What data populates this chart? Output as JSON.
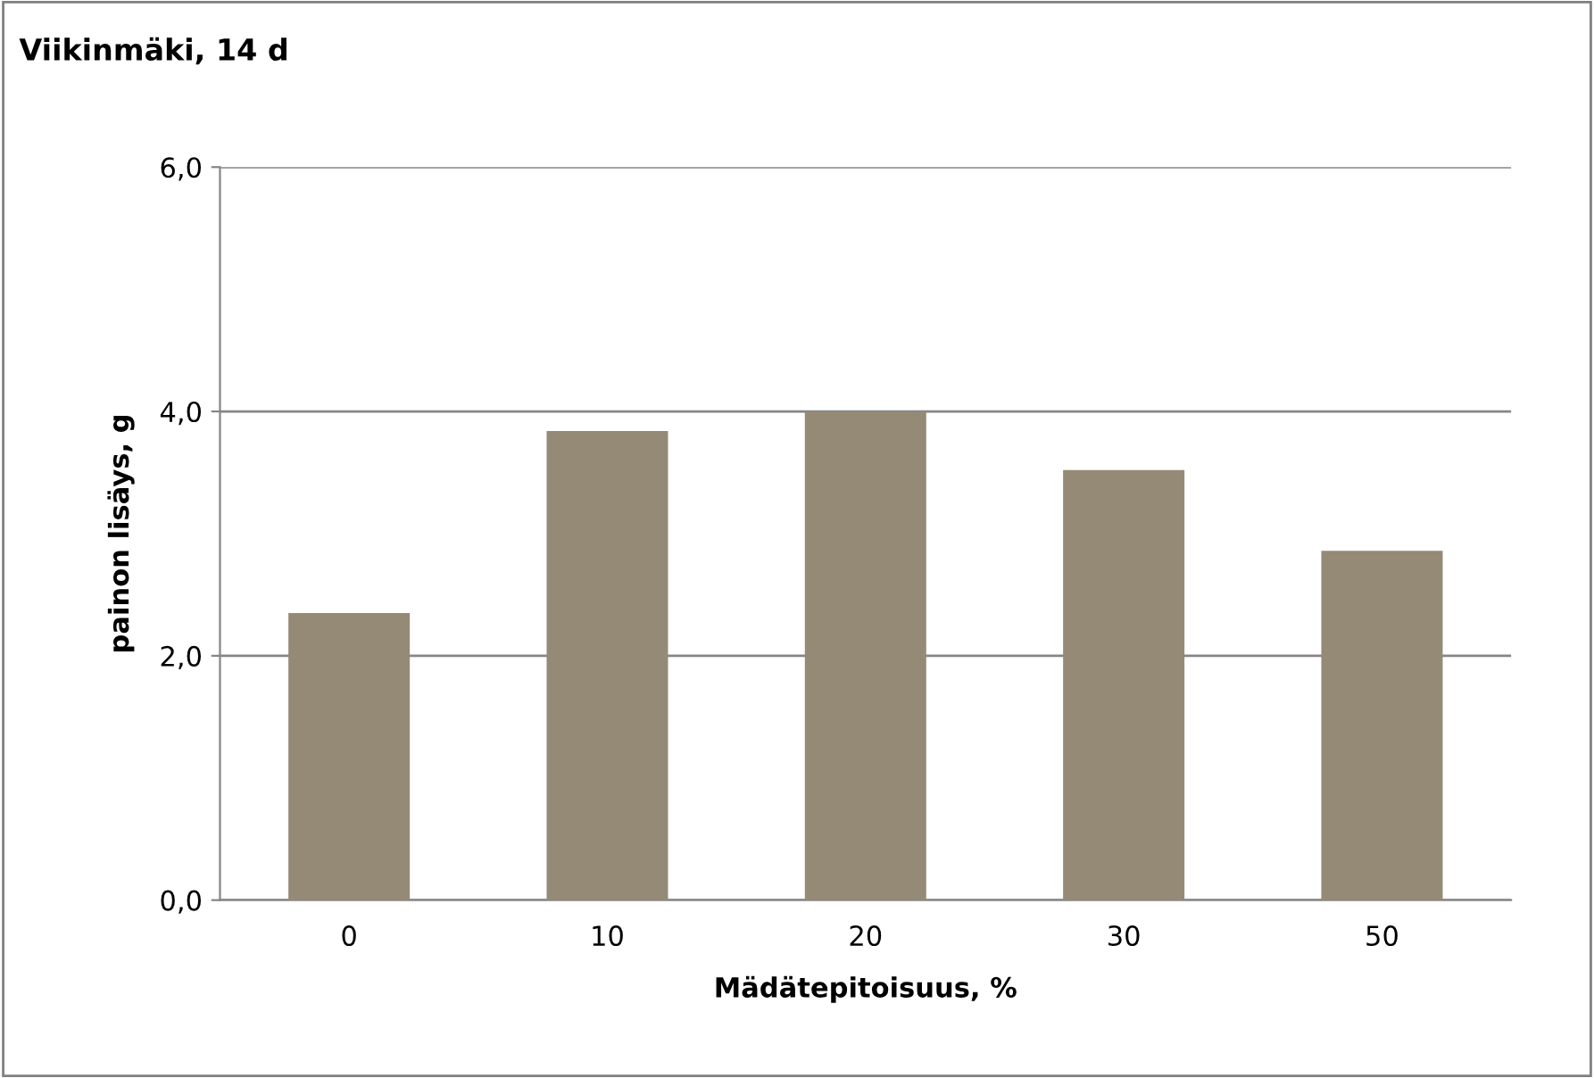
{
  "chart_data": {
    "type": "bar",
    "title": "Viikinmäki, 14 d",
    "xlabel": "Mädätepitoisuus, %",
    "ylabel": "painon lisäys, g",
    "categories": [
      "0",
      "10",
      "20",
      "30",
      "50"
    ],
    "values": [
      2.35,
      3.84,
      4.0,
      3.52,
      2.86
    ],
    "color": "#948a76",
    "ylim": [
      0,
      6
    ],
    "yticks": [
      {
        "value": 0,
        "label": "0,0"
      },
      {
        "value": 2,
        "label": "2,0"
      },
      {
        "value": 4,
        "label": "4,0"
      },
      {
        "value": 6,
        "label": "6,0"
      }
    ],
    "grid": "y",
    "legend": false
  }
}
